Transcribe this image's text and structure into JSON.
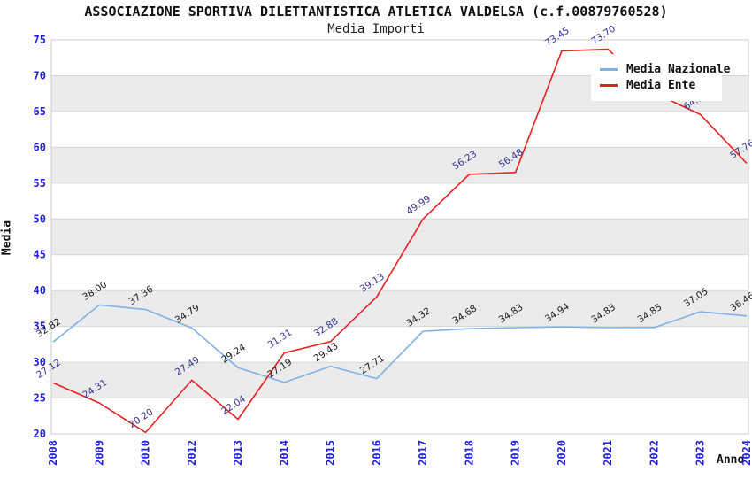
{
  "chart_data": {
    "type": "line",
    "title": "ASSOCIAZIONE SPORTIVA DILETTANTISTICA ATLETICA VALDELSA (c.f.00879760528)",
    "subtitle": "Media Importi",
    "xlabel": "Anno",
    "ylabel": "Media",
    "ylim": [
      20,
      75
    ],
    "ytick_step": 5,
    "grid": "horizontal-bands-alternating",
    "legend_position": "top-right-inside",
    "categories": [
      "2008",
      "2009",
      "2010",
      "2012",
      "2013",
      "2014",
      "2015",
      "2016",
      "2017",
      "2018",
      "2019",
      "2020",
      "2021",
      "2022",
      "2023",
      "2024"
    ],
    "series": [
      {
        "name": "Media Nazionale",
        "color": "#7cb2e8",
        "label_color": "#1a1a1a",
        "values": [
          32.82,
          38.0,
          37.36,
          34.79,
          29.24,
          27.19,
          29.43,
          27.71,
          34.32,
          34.68,
          34.83,
          34.94,
          34.83,
          34.85,
          37.05,
          36.46
        ],
        "labels": [
          "32.82",
          "38.00",
          "37.36",
          "34.79",
          "29.24",
          "27.19",
          "29.43",
          "27.71",
          "34.32",
          "34.68",
          "34.83",
          "34.94",
          "34.83",
          "34.85",
          "37.05",
          "36.46"
        ]
      },
      {
        "name": "Media Ente",
        "color": "#e62222",
        "label_color": "#333399",
        "values": [
          27.12,
          24.31,
          20.2,
          27.49,
          22.04,
          31.31,
          32.88,
          39.13,
          49.99,
          56.23,
          56.48,
          73.45,
          73.7,
          67.6,
          64.57,
          57.76
        ],
        "labels": [
          "27.12",
          "24.31",
          "20.20",
          "27.49",
          "22.04",
          "31.31",
          "32.88",
          "39.13",
          "49.99",
          "56.23",
          "56.48",
          "73.45",
          "73.70",
          null,
          "64.57",
          "57.76"
        ]
      }
    ],
    "colors": {
      "axis_tick_label": "#1f1fd6",
      "band_gray": "#ebebeb",
      "gridline": "#d6d6d6",
      "plot_border": "#cccccc"
    }
  }
}
